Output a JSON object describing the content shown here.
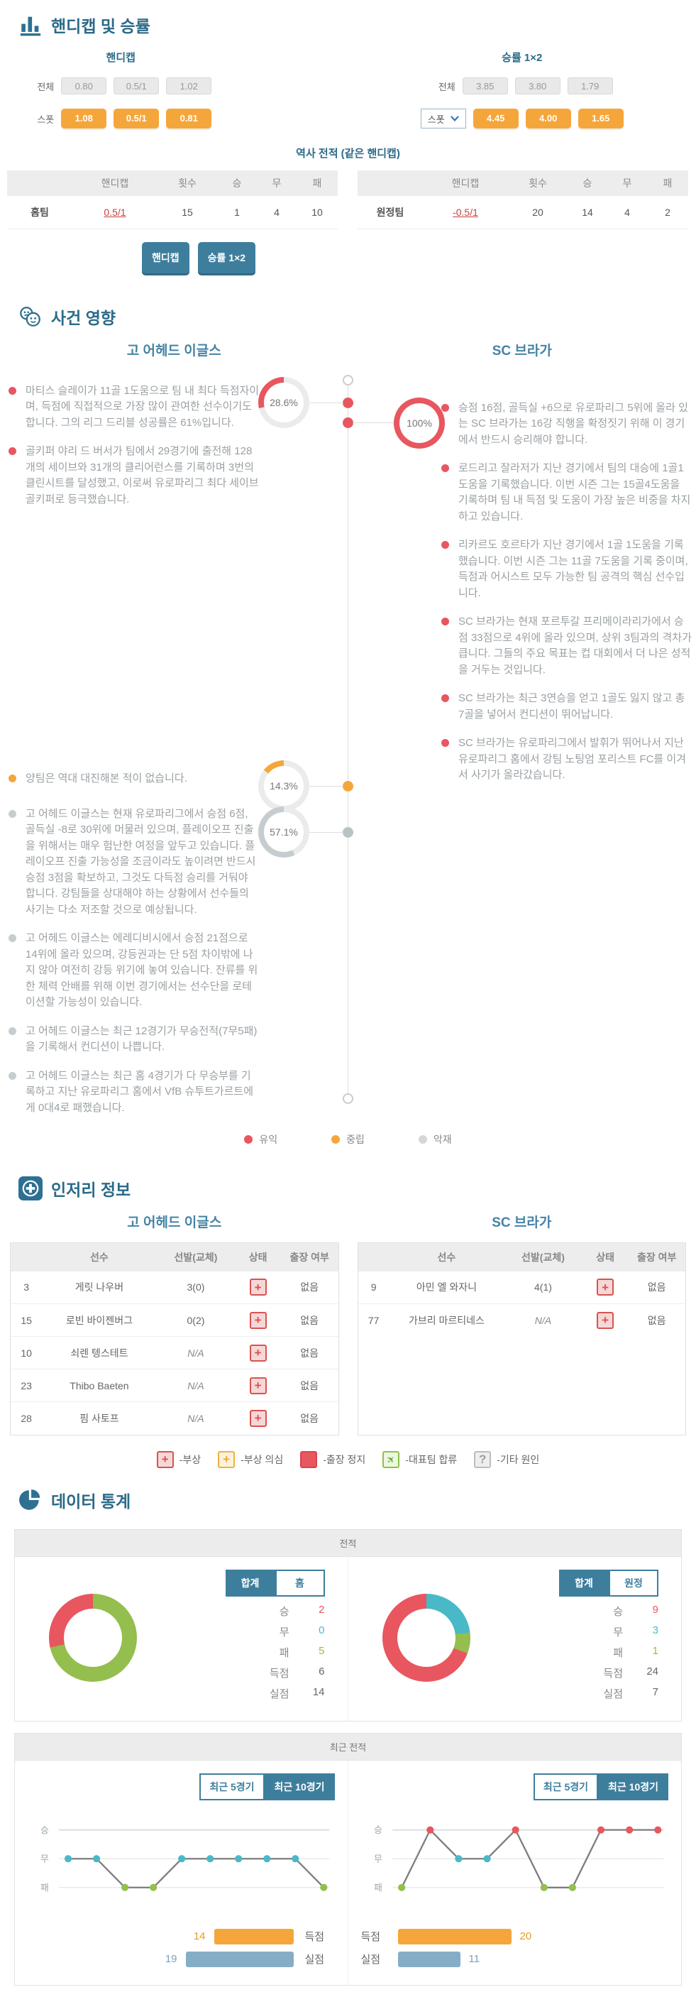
{
  "colors": {
    "accent_teal": "#3e7e9d",
    "header_blue": "#2b6a88",
    "team_blue": "#4583a5",
    "good_red": "#e8565f",
    "neutral_orange": "#f5a63b",
    "bad_gray": "#c6cdd0",
    "win_red": "#e8565f",
    "draw_cyan": "#49b9c7",
    "loss_green": "#94be4d",
    "scored_orange": "#f5a63b",
    "conceded_blue": "#85aec6"
  },
  "handicap_section": {
    "title": "핸디캡 및 승률",
    "handicap_title": "핸디캡",
    "winrate_title": "승률 1×2",
    "all_label": "전체",
    "spot_label": "스폿",
    "handicap_all": [
      "0.80",
      "0.5/1",
      "1.02"
    ],
    "handicap_spot": [
      "1.08",
      "0.5/1",
      "0.81"
    ],
    "winrate_all": [
      "3.85",
      "3.80",
      "1.79"
    ],
    "winrate_spot": [
      "4.45",
      "4.00",
      "1.65"
    ],
    "history_title": "역사 전적 (같은 핸디캡)",
    "table_headers": [
      "핸디캡",
      "횟수",
      "승",
      "무",
      "패"
    ],
    "home_row": {
      "team": "홈팀",
      "handicap": "0.5/1",
      "count": "15",
      "win": "1",
      "draw": "4",
      "loss": "10"
    },
    "away_row": {
      "team": "원정팀",
      "handicap": "-0.5/1",
      "count": "20",
      "win": "14",
      "draw": "4",
      "loss": "2"
    },
    "btn_handicap": "핸디캡",
    "btn_winrate": "승률 1×2"
  },
  "impact_section": {
    "title": "사건 영향",
    "home_team": "고 어헤드 이글스",
    "away_team": "SC 브라가",
    "home_good_pct": "28.6%",
    "home_good_value": 28.6,
    "home_neutral_pct": "14.3%",
    "home_neutral_value": 14.3,
    "home_bad_pct": "57.1%",
    "home_bad_value": 57.1,
    "away_good_pct": "100%",
    "away_good_value": 100,
    "home_good": [
      "마티스 슬레이가 11골 1도움으로 팀 내 최다 득점자이며, 득점에 직접적으로 가장 많이 관여한 선수이기도 합니다. 그의 리그 드리블 성공률은 61%입니다.",
      "골키퍼 야리 드 버서가 팀에서 29경기에 출전해 128개의 세이브와 31개의 클리어런스를 기록하며 3번의 클린시트를 달성했고, 이로써 유로파리그 최다 세이브 골키퍼로 등극했습니다."
    ],
    "home_neutral": [
      "양팀은 역대 대진해본 적이 없습니다."
    ],
    "home_bad": [
      "고 어헤드 이글스는 현재 유로파리그에서 승점 6점, 골득실 -8로 30위에 머물러 있으며, 플레이오프 진출을 위해서는 매우 험난한 여정을 앞두고 있습니다. 플레이오프 진출 가능성을 조금이라도 높이려면 반드시 승점 3점을 확보하고, 그것도 다득점 승리를 거둬야 합니다. 강팀들을 상대해야 하는 상황에서 선수들의 사기는 다소 저조할 것으로 예상됩니다.",
      "고 어헤드 이글스는 에레디비시에서 승점 21점으로 14위에 올라 있으며, 강등권과는 단 5점 차이밖에 나지 않아 여전히 강등 위기에 놓여 있습니다. 잔류를 위한 체력 안배를 위해 이번 경기에서는 선수단을 로테이션할 가능성이 있습니다.",
      "고 어헤드 이글스는 최근 12경기가 무승전적(7무5패)을 기록해서 컨디션이 나쁩니다.",
      "고 어헤드 이글스는 최근 홈 4경기가 다 무승부를 기록하고 지난 유로파리그 홈에서 VfB 슈투트가르트에게 0대4로 패했습니다."
    ],
    "away_good": [
      "승점 16점, 골득실 +6으로 유로파리그 5위에 올라 있는 SC 브라가는 16강 직행을 확정짓기 위해 이 경기에서 반드시 승리해야 합니다.",
      "로드리고 잘라저가 지난 경기에서 팀의 대승에 1골1도움을 기록했습니다. 이번 시즌 그는 15골4도움을 기록하며 팀 내 득점 및 도움이 가장 높은 비중을 차지하고 있습니다.",
      "리카르도 호르타가 지난 경기에서 1골 1도움을 기록했습니다. 이번 시즌 그는 11골 7도움을 기록 중이며, 득점과 어시스트 모두 가능한 팀 공격의 핵심 선수입니다.",
      "SC 브라가는 현재 포르투갈 프리메이라리가에서 승점 33점으로 4위에 올라 있으며, 상위 3팀과의 격차가 큽니다. 그들의 주요 목표는 컵 대회에서 더 나은 성적을 거두는 것입니다.",
      "SC 브라가는 최근 3연승을 얻고 1골도 잃지 않고 총 7골을 넣어서 컨디션이 뛰어납니다.",
      "SC 브라가는 유로파리그에서 발휘가 뛰어나서 지난 유로파리그 홈에서 강팀 노팅엄 포리스트 FC를 이겨서 사기가 올라갔습니다."
    ],
    "legend": [
      {
        "label": "유익",
        "color": "#e8565f"
      },
      {
        "label": "중립",
        "color": "#f5a63b"
      },
      {
        "label": "악재",
        "color": "#d6d6d6"
      }
    ]
  },
  "injury_section": {
    "title": "인저리 정보",
    "home_team": "고 어헤드 이글스",
    "away_team": "SC 브라가",
    "headers": [
      "선수",
      "선발(교체)",
      "상태",
      "출장 여부"
    ],
    "home_rows": [
      {
        "no": "3",
        "name": "게릿 나우버",
        "starts": "3(0)",
        "status": "plus-red",
        "available": "없음"
      },
      {
        "no": "15",
        "name": "로빈 바이젠버그",
        "starts": "0(2)",
        "status": "plus-red",
        "available": "없음"
      },
      {
        "no": "10",
        "name": "쇠렌 텡스테트",
        "starts": "N/A",
        "status": "plus-red",
        "available": "없음"
      },
      {
        "no": "23",
        "name": "Thibo Baeten",
        "starts": "N/A",
        "status": "plus-red",
        "available": "없음"
      },
      {
        "no": "28",
        "name": "핌 사토프",
        "starts": "N/A",
        "status": "plus-red",
        "available": "없음"
      }
    ],
    "away_rows": [
      {
        "no": "9",
        "name": "아민 엘 와자니",
        "starts": "4(1)",
        "status": "plus-red",
        "available": "없음"
      },
      {
        "no": "77",
        "name": "가브리 마르티네스",
        "starts": "N/A",
        "status": "plus-red",
        "available": "없음"
      }
    ],
    "legend": [
      {
        "icon": "plus-red",
        "label": "-부상"
      },
      {
        "icon": "plus-yellow",
        "label": "-부상 의심"
      },
      {
        "icon": "square-red",
        "label": "-출장 정지"
      },
      {
        "icon": "plane-green",
        "label": "-대표팀 합류"
      },
      {
        "icon": "question-gray",
        "label": "-기타 원인"
      }
    ]
  },
  "stats_section": {
    "title": "데이터 통계",
    "record_title": "전적",
    "recent_title": "최근 전적",
    "tab_total": "합계",
    "tab_home": "홈",
    "tab_away": "원정",
    "tab_recent5": "최근 5경기",
    "tab_recent10": "최근 10경기",
    "home_record": {
      "segments": [
        {
          "name": "패",
          "value": 5,
          "color": "#94be4d"
        },
        {
          "name": "승",
          "value": 2,
          "color": "#e8565f"
        }
      ],
      "rows": [
        {
          "label": "승",
          "value": "2",
          "color": "#e8565f"
        },
        {
          "label": "무",
          "value": "0",
          "color": "#49b9c7"
        },
        {
          "label": "패",
          "value": "5",
          "color": "#94be4d"
        },
        {
          "label": "득점",
          "value": "6",
          "color": "#666666"
        },
        {
          "label": "실점",
          "value": "14",
          "color": "#666666"
        }
      ]
    },
    "away_record": {
      "segments": [
        {
          "name": "무",
          "value": 3,
          "color": "#49b9c7"
        },
        {
          "name": "패",
          "value": 1,
          "color": "#94be4d"
        },
        {
          "name": "승",
          "value": 9,
          "color": "#e8565f"
        }
      ],
      "rows": [
        {
          "label": "승",
          "value": "9",
          "color": "#e8565f"
        },
        {
          "label": "무",
          "value": "3",
          "color": "#49b9c7"
        },
        {
          "label": "패",
          "value": "1",
          "color": "#94be4d"
        },
        {
          "label": "득점",
          "value": "24",
          "color": "#666666"
        },
        {
          "label": "실점",
          "value": "7",
          "color": "#666666"
        }
      ]
    },
    "result_axis": [
      "승",
      "무",
      "패"
    ],
    "result_colors": {
      "W": "#e8565f",
      "D": "#49b9c7",
      "L": "#94be4d"
    },
    "home_results": [
      "D",
      "D",
      "L",
      "L",
      "D",
      "D",
      "D",
      "D",
      "D",
      "L"
    ],
    "away_results": [
      "L",
      "W",
      "D",
      "D",
      "W",
      "L",
      "L",
      "W",
      "W",
      "W"
    ],
    "scored_label": "득점",
    "conceded_label": "실점",
    "home_goals": {
      "scored": 14,
      "conceded": 19
    },
    "away_goals": {
      "scored": 20,
      "conceded": 11
    }
  }
}
